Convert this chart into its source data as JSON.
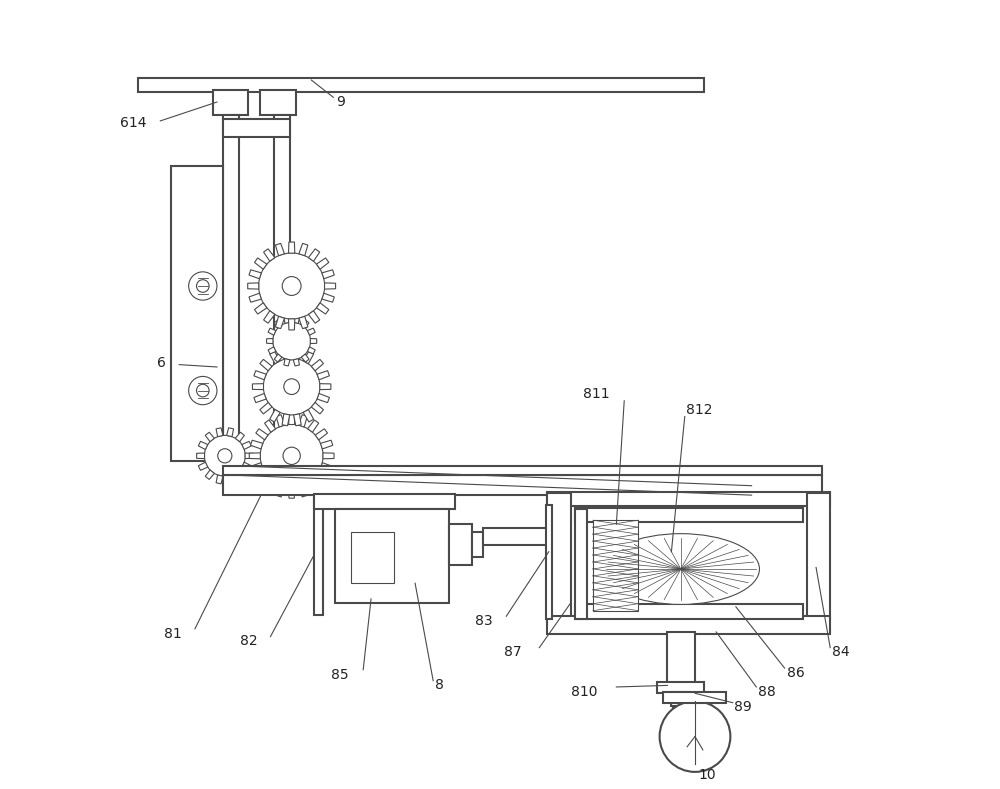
{
  "bg_color": "#ffffff",
  "line_color": "#4a4a4a",
  "line_width": 1.5,
  "thin_line": 0.8,
  "fig_width": 10.0,
  "fig_height": 7.89
}
